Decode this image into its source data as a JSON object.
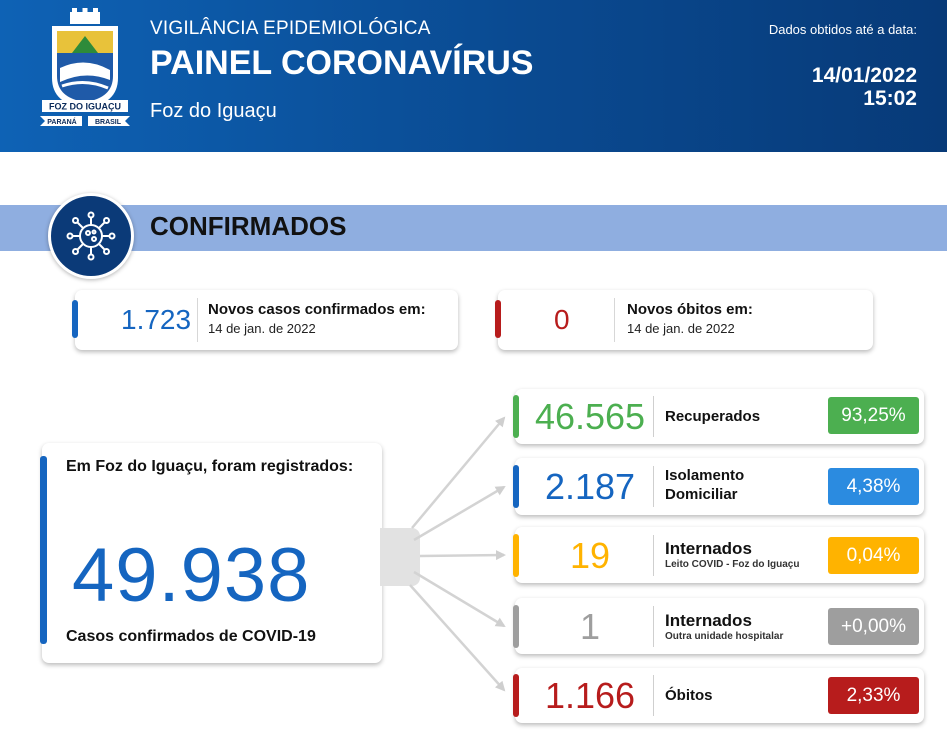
{
  "header": {
    "subtitle": "VIGILÂNCIA EPIDEMIOLÓGICA",
    "title": "PAINEL CORONAVÍRUS",
    "city": "Foz do Iguaçu",
    "data_label": "Dados obtidos até a data:",
    "date": "14/01/2022",
    "time": "15:02",
    "logo": {
      "icon": "city-coat-of-arms",
      "banner": "FOZ DO IGUAÇU",
      "left_ribbon": "PARANÁ",
      "right_ribbon": "BRASIL"
    }
  },
  "section": {
    "title": "CONFIRMADOS",
    "icon": "virus-icon"
  },
  "new_cases": {
    "value": "1.723",
    "label": "Novos casos confirmados em:",
    "date": "14 de jan. de 2022",
    "color": "#1565c0"
  },
  "new_deaths": {
    "value": "0",
    "label": "Novos óbitos em:",
    "date": "14 de jan. de 2022",
    "color": "#b71c1c"
  },
  "total": {
    "intro": "Em Foz do Iguaçu, foram registrados:",
    "value": "49.938",
    "caption": "Casos confirmados de COVID-19"
  },
  "breakdown": [
    {
      "value": "46.565",
      "label": "Recuperados",
      "label2": "",
      "sub": "",
      "percent": "93,25%",
      "color": "#4caf50",
      "badge_color": "#4caf50"
    },
    {
      "value": "2.187",
      "label": "Isolamento",
      "label2": "Domiciliar",
      "sub": "",
      "percent": "4,38%",
      "color": "#1565c0",
      "badge_color": "#2b8be0"
    },
    {
      "value": "19",
      "label": "Internados",
      "label2": "",
      "sub": "Leito COVID - Foz do Iguaçu",
      "percent": "0,04%",
      "color": "#ffb300",
      "badge_color": "#ffb300"
    },
    {
      "value": "1",
      "label": "Internados",
      "label2": "",
      "sub": "Outra unidade hospitalar",
      "percent": "+0,00%",
      "color": "#9e9e9e",
      "badge_color": "#9e9e9e"
    },
    {
      "value": "1.166",
      "label": "Óbitos",
      "label2": "",
      "sub": "",
      "percent": "2,33%",
      "color": "#b71c1c",
      "badge_color": "#b71c1c"
    }
  ]
}
